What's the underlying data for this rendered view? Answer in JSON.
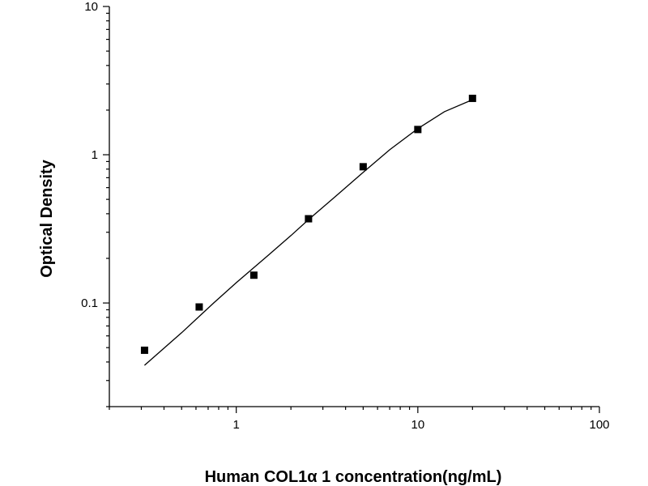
{
  "chart_data": {
    "type": "scatter",
    "title": "",
    "xlabel": "Human COL1α 1 concentration(ng/mL)",
    "ylabel": "Optical Density",
    "x_scale": "log",
    "y_scale": "log",
    "xlim": [
      0.2,
      100
    ],
    "ylim": [
      0.02,
      10
    ],
    "x_ticks": [
      {
        "value": 1,
        "label": "1"
      },
      {
        "value": 10,
        "label": "10"
      },
      {
        "value": 100,
        "label": "100"
      }
    ],
    "y_ticks": [
      {
        "value": 0.1,
        "label": "0.1"
      },
      {
        "value": 1,
        "label": "1"
      },
      {
        "value": 10,
        "label": "10"
      }
    ],
    "grid": false,
    "points": [
      {
        "x": 0.3125,
        "y": 0.048
      },
      {
        "x": 0.625,
        "y": 0.094
      },
      {
        "x": 1.25,
        "y": 0.154
      },
      {
        "x": 2.5,
        "y": 0.37
      },
      {
        "x": 5,
        "y": 0.83
      },
      {
        "x": 10,
        "y": 1.48
      },
      {
        "x": 20,
        "y": 2.4
      }
    ],
    "fit_curve": [
      {
        "x": 0.3125,
        "y": 0.038
      },
      {
        "x": 0.5,
        "y": 0.063
      },
      {
        "x": 0.75,
        "y": 0.1
      },
      {
        "x": 1.0,
        "y": 0.137
      },
      {
        "x": 1.5,
        "y": 0.21
      },
      {
        "x": 2.0,
        "y": 0.285
      },
      {
        "x": 2.5,
        "y": 0.365
      },
      {
        "x": 3.5,
        "y": 0.52
      },
      {
        "x": 5,
        "y": 0.76
      },
      {
        "x": 7,
        "y": 1.08
      },
      {
        "x": 10,
        "y": 1.5
      },
      {
        "x": 14,
        "y": 1.95
      },
      {
        "x": 20,
        "y": 2.35
      }
    ],
    "marker_color": "#000000",
    "line_color": "#000000"
  }
}
